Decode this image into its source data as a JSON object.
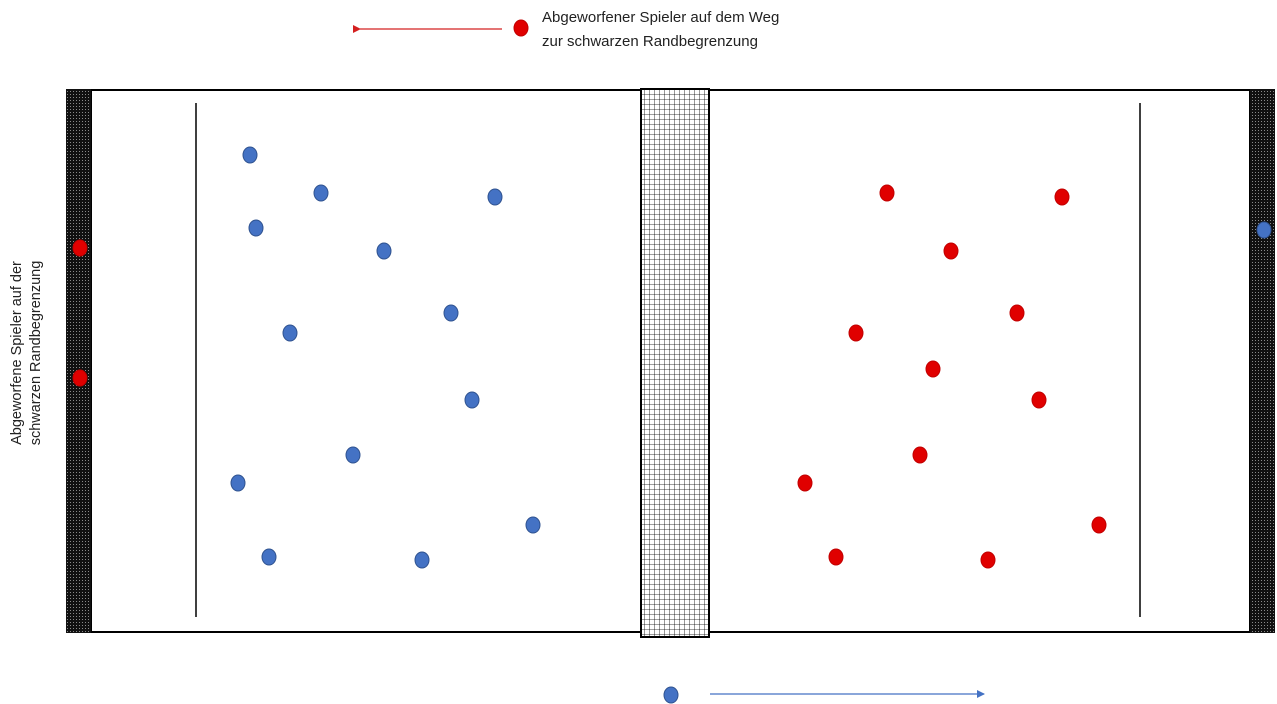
{
  "legend": {
    "line1": "Abgeworfener Spieler auf dem Weg",
    "line2": "zur schwarzen Randbegrenzung"
  },
  "side_label": {
    "line1": "Abgeworfene Spieler auf der",
    "line2": "schwarzen Randbegrenzung"
  },
  "colors": {
    "blue_team": "#4472c4",
    "red_team": "#e00000",
    "red_outline": "#c00000",
    "blue_outline": "#2f528f",
    "field_line": "#000000",
    "red_arrow": "#d42020",
    "blue_arrow": "#4472c4"
  }
}
